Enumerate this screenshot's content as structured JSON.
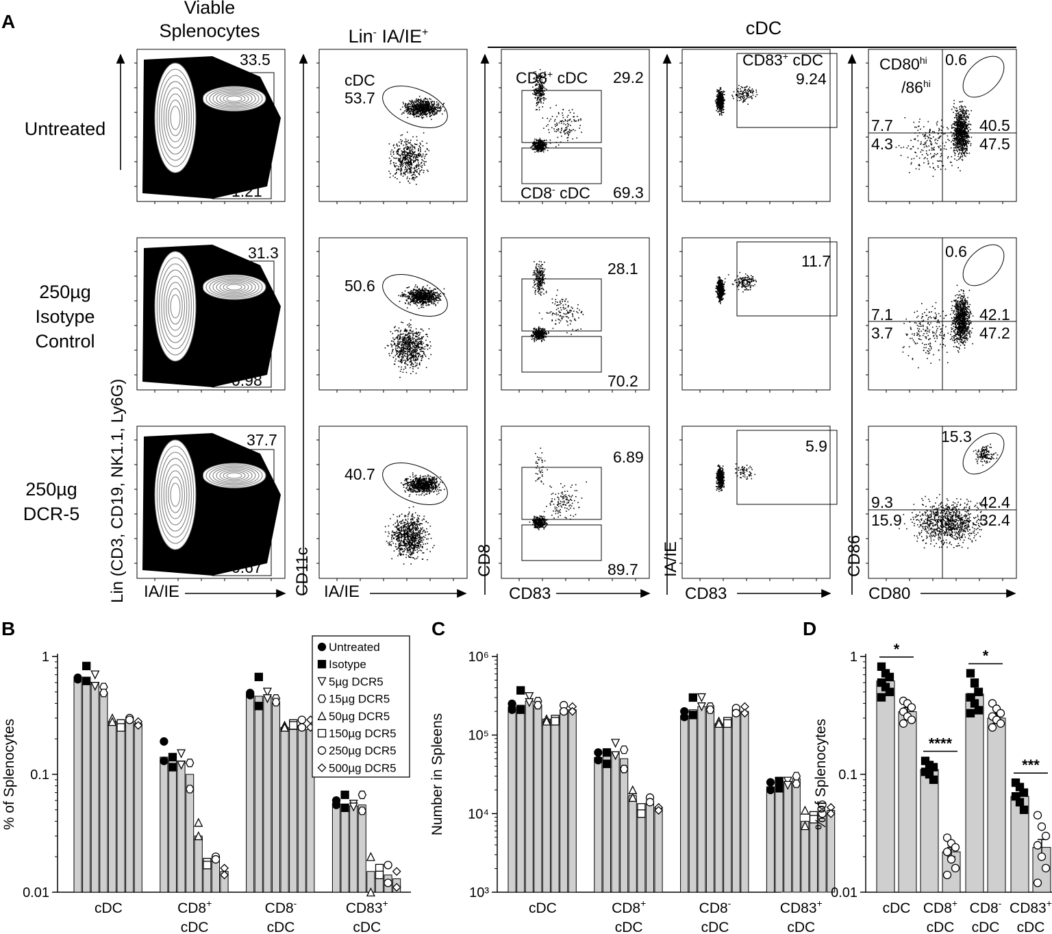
{
  "panel_labels": {
    "A": "A",
    "B": "B",
    "C": "C",
    "D": "D"
  },
  "panelA": {
    "headers": {
      "viable": [
        "Viable",
        "Splenocytes"
      ],
      "lin_pre": "Lin",
      "lin_sup1": "-",
      "lin_mid": " IA/IE",
      "lin_sup2": "+",
      "cdc": "cDC"
    },
    "rows": [
      {
        "label": [
          "Untreated"
        ]
      },
      {
        "label": [
          "250µg",
          "Isotype",
          "Control"
        ]
      },
      {
        "label": [
          "250µg",
          "DCR-5"
        ]
      }
    ],
    "axes": {
      "col1_y": "Lin (CD3, CD19, NK1.1, Ly6G)",
      "col1_x": "IA/IE",
      "col2_y": "CD11c",
      "col2_x": "IA/IE",
      "col3_y": "CD8",
      "col3_x": "CD83",
      "col4_y": "IA/IE",
      "col4_x": "CD83",
      "col5_y": "CD86",
      "col5_x": "CD80"
    },
    "gates": {
      "col1": [
        {
          "top": "33.5",
          "bottom": "1.21"
        },
        {
          "top": "31.3",
          "bottom": "0.98"
        },
        {
          "top": "37.7",
          "bottom": "0.67"
        }
      ],
      "col2": [
        {
          "name": "cDC",
          "value": "53.7"
        },
        {
          "value": "50.6"
        },
        {
          "value": "40.7"
        }
      ],
      "col3": [
        {
          "pos_name": "CD8",
          "pos_sup": "+",
          "pos_suffix": " cDC",
          "pos": "29.2",
          "neg_name": "CD8",
          "neg_sup": "-",
          "neg_suffix": " cDC",
          "neg": "69.3"
        },
        {
          "pos": "28.1",
          "neg": "70.2"
        },
        {
          "pos": "6.89",
          "neg": "89.7"
        }
      ],
      "col4": [
        {
          "name_pre": "CD83",
          "name_sup": "+",
          "name_suffix": " cDC",
          "value": "9.24"
        },
        {
          "value": "11.7"
        },
        {
          "value": "5.9"
        }
      ],
      "col5": [
        {
          "hi_a": "CD80",
          "hi_sup1": "hi",
          "hi_b": "/86",
          "hi_sup2": "hi",
          "hi": "0.6",
          "ul": "7.7",
          "ur": "40.5",
          "ll": "4.3",
          "lr": "47.5"
        },
        {
          "hi": "0.6",
          "ul": "7.1",
          "ur": "42.1",
          "ll": "3.7",
          "lr": "47.2"
        },
        {
          "hi": "15.3",
          "ul": "9.3",
          "ur": "42.4",
          "ll": "15.9",
          "lr": "32.4"
        }
      ]
    }
  },
  "chart_data": [
    {
      "panel": "B",
      "type": "bar",
      "scale": "log",
      "ylabel": "% of Splenocytes",
      "ylim": [
        0.01,
        1
      ],
      "yticks": [
        "0.01",
        "0.1",
        "1"
      ],
      "categories": [
        [
          "cDC"
        ],
        [
          "CD8+",
          "cDC"
        ],
        [
          "CD8-",
          "cDC"
        ],
        [
          "CD83+",
          "cDC"
        ]
      ],
      "legend": [
        "Untreated",
        "Isotype",
        "5µg DCR5",
        "15µg DCR5",
        "50µg DCR5",
        "150µg DCR5",
        "250µg DCR5",
        "500µg DCR5"
      ],
      "markers": [
        "filled-circle",
        "filled-square",
        "down-triangle",
        "hexagon",
        "triangle",
        "square",
        "circle",
        "diamond"
      ],
      "groups": [
        [
          0.62,
          0.6,
          0.6,
          0.5,
          0.28,
          0.26,
          0.28,
          0.27
        ],
        [
          0.14,
          0.13,
          0.13,
          0.1,
          0.03,
          0.018,
          0.019,
          0.015
        ],
        [
          0.47,
          0.46,
          0.46,
          0.4,
          0.25,
          0.24,
          0.26,
          0.24
        ],
        [
          0.057,
          0.055,
          0.054,
          0.055,
          0.015,
          0.014,
          0.014,
          0.013
        ]
      ],
      "points": [
        [
          [
            0.66,
            0.64
          ],
          [
            0.83,
            0.62
          ],
          [
            0.7,
            0.56
          ],
          [
            0.55,
            0.49
          ],
          [
            0.3,
            0.28
          ],
          [
            0.27,
            0.25
          ],
          [
            0.3,
            0.29
          ],
          [
            0.28,
            0.26
          ]
        ],
        [
          [
            0.19,
            0.13
          ],
          [
            0.14,
            0.115
          ],
          [
            0.15,
            0.12
          ],
          [
            0.125,
            0.075
          ],
          [
            0.039,
            0.03
          ],
          [
            0.018,
            0.017
          ],
          [
            0.02,
            0.019
          ],
          [
            0.016,
            0.014
          ]
        ],
        [
          [
            0.49,
            0.47
          ],
          [
            0.67,
            0.38
          ],
          [
            0.5,
            0.44
          ],
          [
            0.44,
            0.41
          ],
          [
            0.26,
            0.25
          ],
          [
            0.27,
            0.26
          ],
          [
            0.29,
            0.25
          ],
          [
            0.29,
            0.25
          ]
        ],
        [
          [
            0.06,
            0.055
          ],
          [
            0.067,
            0.052
          ],
          [
            0.056,
            0.053
          ],
          [
            0.067,
            0.049
          ],
          [
            0.02,
            0.01
          ],
          [
            0.016,
            0.014
          ],
          [
            0.017,
            0.012
          ],
          [
            0.015,
            0.011
          ]
        ]
      ]
    },
    {
      "panel": "C",
      "type": "bar",
      "scale": "log",
      "ylabel": "Number in Spleens",
      "ylim": [
        1000,
        1000000
      ],
      "yticks": [
        "10³",
        "10⁴",
        "10⁵",
        "10⁶"
      ],
      "categories": [
        [
          "cDC"
        ],
        [
          "CD8+",
          "cDC"
        ],
        [
          "CD8-",
          "cDC"
        ],
        [
          "CD83+",
          "cDC"
        ]
      ],
      "markers": [
        "filled-circle",
        "filled-square",
        "down-triangle",
        "hexagon",
        "triangle",
        "square",
        "circle",
        "diamond"
      ],
      "groups": [
        [
          230000,
          240000,
          270000,
          240000,
          160000,
          160000,
          210000,
          210000
        ],
        [
          52000,
          57000,
          60000,
          50000,
          17000,
          11000,
          14000,
          12000
        ],
        [
          175000,
          210000,
          230000,
          220000,
          140000,
          145000,
          210000,
          200000
        ],
        [
          22000,
          23000,
          25000,
          28000,
          8000,
          8500,
          10000,
          11000
        ]
      ],
      "points": [
        [
          [
            250000,
            210000
          ],
          [
            370000,
            210000
          ],
          [
            310000,
            260000
          ],
          [
            270000,
            240000
          ],
          [
            160000,
            150000
          ],
          [
            160000,
            150000
          ],
          [
            240000,
            200000
          ],
          [
            230000,
            200000
          ]
        ],
        [
          [
            60000,
            48000
          ],
          [
            60000,
            43000
          ],
          [
            79000,
            55000
          ],
          [
            65000,
            37000
          ],
          [
            20000,
            16000
          ],
          [
            12000,
            10000
          ],
          [
            16000,
            14000
          ],
          [
            12000,
            11000
          ]
        ],
        [
          [
            200000,
            170000
          ],
          [
            300000,
            180000
          ],
          [
            300000,
            230000
          ],
          [
            230000,
            210000
          ],
          [
            150000,
            140000
          ],
          [
            150000,
            140000
          ],
          [
            220000,
            190000
          ],
          [
            230000,
            190000
          ]
        ],
        [
          [
            25000,
            20000
          ],
          [
            26000,
            21000
          ],
          [
            26000,
            23000
          ],
          [
            30000,
            24000
          ],
          [
            11000,
            7000
          ],
          [
            9500,
            8500
          ],
          [
            13000,
            10000
          ],
          [
            12000,
            10000
          ]
        ]
      ]
    },
    {
      "panel": "D",
      "type": "bar",
      "scale": "log",
      "ylabel": "% of Splenocytes",
      "ylim": [
        0.01,
        1
      ],
      "yticks": [
        "0.01",
        "0.1",
        "1"
      ],
      "categories": [
        [
          "cDC"
        ],
        [
          "CD8+",
          "cDC"
        ],
        [
          "CD8-",
          "cDC"
        ],
        [
          "CD83+",
          "cDC"
        ]
      ],
      "significance": [
        "*",
        "****",
        "*",
        "***"
      ],
      "series": [
        {
          "marker": "filled-square",
          "values": [
            0.62,
            0.11,
            0.48,
            0.065
          ],
          "sem": [
            0.08,
            0.01,
            0.07,
            0.009
          ],
          "points": [
            [
              0.82,
              0.72,
              0.67,
              0.6,
              0.55,
              0.5,
              0.45
            ],
            [
              0.13,
              0.12,
              0.115,
              0.105,
              0.1,
              0.09
            ],
            [
              0.72,
              0.6,
              0.5,
              0.45,
              0.4,
              0.35,
              0.33
            ],
            [
              0.085,
              0.078,
              0.07,
              0.065,
              0.058,
              0.05
            ]
          ]
        },
        {
          "marker": "open-circle",
          "values": [
            0.34,
            0.022,
            0.3,
            0.024
          ],
          "sem": [
            0.03,
            0.002,
            0.03,
            0.004
          ],
          "points": [
            [
              0.42,
              0.4,
              0.37,
              0.34,
              0.31,
              0.29,
              0.27
            ],
            [
              0.029,
              0.026,
              0.024,
              0.022,
              0.019,
              0.016,
              0.014
            ],
            [
              0.4,
              0.36,
              0.33,
              0.31,
              0.29,
              0.27,
              0.25
            ],
            [
              0.045,
              0.036,
              0.03,
              0.025,
              0.02,
              0.016,
              0.012
            ]
          ]
        }
      ]
    }
  ]
}
